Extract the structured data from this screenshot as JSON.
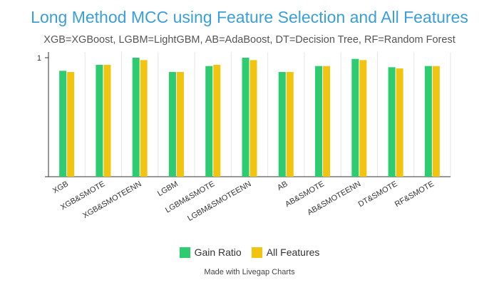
{
  "chart_data": {
    "type": "bar",
    "title": "Long Method MCC using Feature Selection and All Features",
    "subtitle": "XGB=XGBoost, LGBM=LightGBM, AB=AdaBoost, DT=Decision Tree, RF=Random Forest",
    "categories": [
      "XGB",
      "XGB&SMOTE",
      "XGB&SMOTEENN",
      "LGBM",
      "LGBM&SMOTE",
      "LGBM&SMOTEENN",
      "AB",
      "AB&SMOTE",
      "AB&SMOTEENN",
      "DT&SMOTE",
      "RF&SMOTE"
    ],
    "series": [
      {
        "name": "Gain Ratio",
        "color": "#2ecc71",
        "values": [
          0.89,
          0.94,
          1.0,
          0.88,
          0.93,
          1.0,
          0.88,
          0.93,
          0.99,
          0.92,
          0.93
        ]
      },
      {
        "name": "All Features",
        "color": "#f1c40f",
        "values": [
          0.88,
          0.94,
          0.98,
          0.88,
          0.94,
          0.98,
          0.88,
          0.93,
          0.98,
          0.91,
          0.93
        ]
      }
    ],
    "yticks": [
      "1"
    ],
    "ylim": [
      0,
      1
    ],
    "xlabel": "",
    "ylabel": "",
    "grid": "vertical",
    "legend_position": "bottom"
  },
  "credit": "Made with Livegap Charts"
}
